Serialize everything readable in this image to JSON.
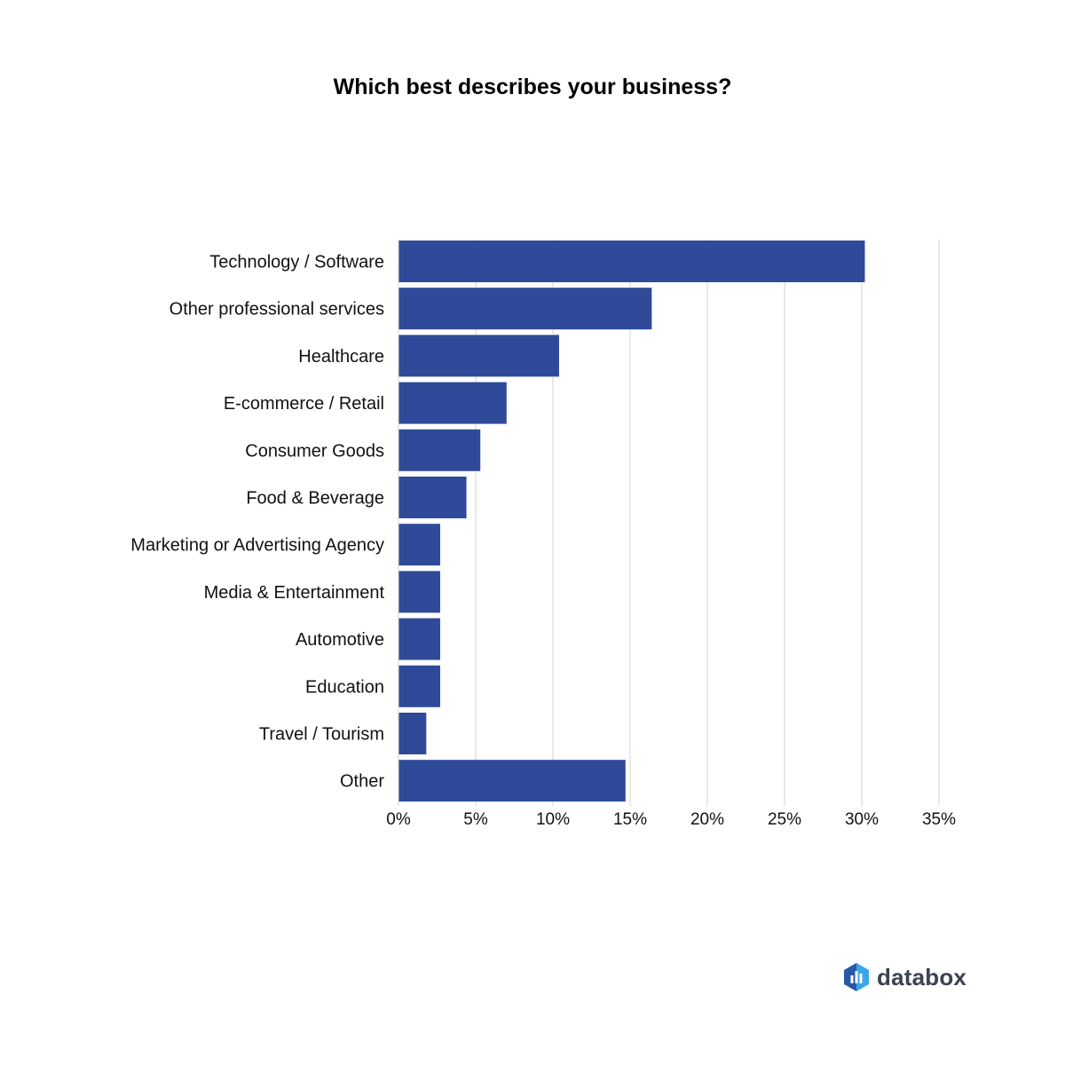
{
  "colors": {
    "bar": "#2e4a99",
    "grid": "#d3d3d3",
    "text": "#111111",
    "brand_dark": "#2757a5",
    "brand_light": "#3aa7e8",
    "brand_text": "#3c4250"
  },
  "brand": {
    "name": "databox",
    "icon": "databox-logo-icon"
  },
  "chart_data": {
    "type": "bar",
    "orientation": "horizontal",
    "title": "Which best describes your business?",
    "xlabel": "",
    "ylabel": "",
    "categories": [
      "Technology / Software",
      "Other professional services",
      "Healthcare",
      "E-commerce / Retail",
      "Consumer Goods",
      "Food & Beverage",
      "Marketing or Advertising Agency",
      "Media & Entertainment",
      "Automotive",
      "Education",
      "Travel / Tourism",
      "Other"
    ],
    "values": [
      30.2,
      16.4,
      10.4,
      7.0,
      5.3,
      4.4,
      2.7,
      2.7,
      2.7,
      2.7,
      1.8,
      14.7
    ],
    "xlim": [
      0,
      35
    ],
    "ticks": [
      0,
      5,
      10,
      15,
      20,
      25,
      30,
      35
    ],
    "tick_labels": [
      "0%",
      "5%",
      "10%",
      "15%",
      "20%",
      "25%",
      "30%",
      "35%"
    ],
    "grid": true,
    "legend": "none"
  }
}
